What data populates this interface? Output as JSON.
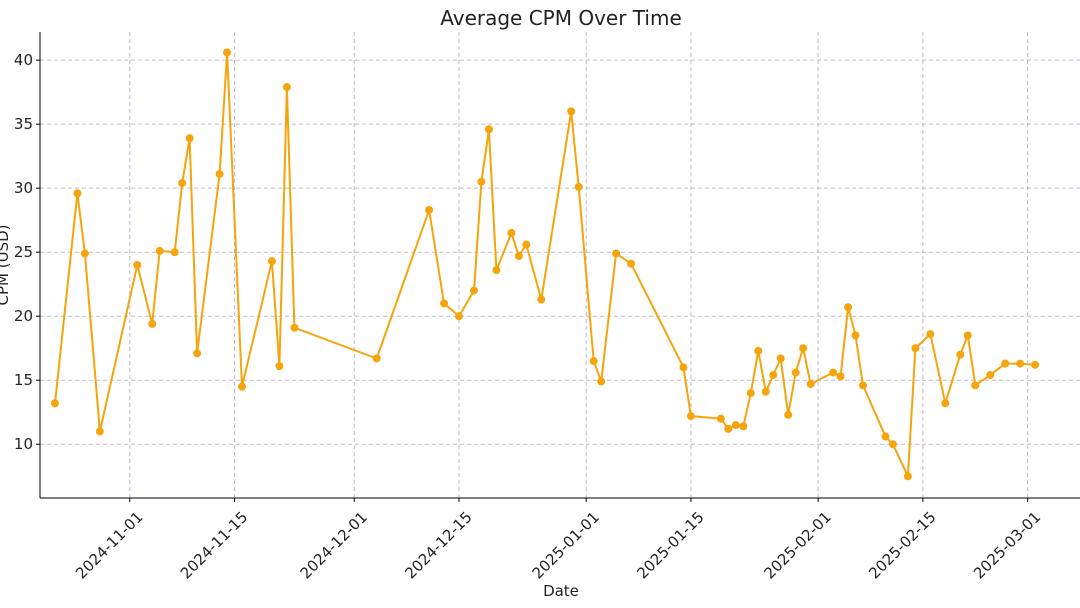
{
  "chart_data": {
    "type": "line",
    "title": "Average CPM Over Time",
    "xlabel": "Date",
    "ylabel": "CPM (USD)",
    "x_ticks": [
      "2024-11-01",
      "2024-11-15",
      "2024-12-01",
      "2024-12-15",
      "2025-01-01",
      "2025-01-15",
      "2025-02-01",
      "2025-02-15",
      "2025-03-01"
    ],
    "y_ticks": [
      10,
      15,
      20,
      25,
      30,
      35,
      40
    ],
    "xlim": [
      "2024-10-20",
      "2025-03-08"
    ],
    "ylim": [
      5.8,
      42.2
    ],
    "grid": true,
    "colors": {
      "line": "#f5a40c",
      "grid": "#c9b3d0",
      "axis": "#000000"
    },
    "series": [
      {
        "points": [
          [
            "2024-10-22",
            13.2
          ],
          [
            "2024-10-25",
            29.6
          ],
          [
            "2024-10-26",
            24.9
          ],
          [
            "2024-10-28",
            11.0
          ],
          [
            "2024-11-02",
            24.0
          ],
          [
            "2024-11-04",
            19.4
          ],
          [
            "2024-11-05",
            25.1
          ],
          [
            "2024-11-07",
            25.0
          ],
          [
            "2024-11-08",
            30.4
          ],
          [
            "2024-11-09",
            33.9
          ],
          [
            "2024-11-10",
            17.1
          ],
          [
            "2024-11-13",
            31.1
          ],
          [
            "2024-11-14",
            40.6
          ],
          [
            "2024-11-16",
            14.5
          ],
          [
            "2024-11-20",
            24.3
          ],
          [
            "2024-11-21",
            16.1
          ],
          [
            "2024-11-22",
            37.9
          ],
          [
            "2024-11-23",
            19.1
          ],
          [
            "2024-12-04",
            16.7
          ],
          [
            "2024-12-11",
            28.3
          ],
          [
            "2024-12-13",
            21.0
          ],
          [
            "2024-12-15",
            20.0
          ],
          [
            "2024-12-17",
            22.0
          ],
          [
            "2024-12-18",
            30.5
          ],
          [
            "2024-12-19",
            34.6
          ],
          [
            "2024-12-20",
            23.6
          ],
          [
            "2024-12-22",
            26.5
          ],
          [
            "2024-12-23",
            24.7
          ],
          [
            "2024-12-24",
            25.6
          ],
          [
            "2024-12-26",
            21.3
          ],
          [
            "2024-12-30",
            36.0
          ],
          [
            "2024-12-31",
            30.1
          ],
          [
            "2025-01-02",
            16.5
          ],
          [
            "2025-01-03",
            14.9
          ],
          [
            "2025-01-05",
            24.9
          ],
          [
            "2025-01-07",
            24.1
          ],
          [
            "2025-01-14",
            16.0
          ],
          [
            "2025-01-15",
            12.2
          ],
          [
            "2025-01-19",
            12.0
          ],
          [
            "2025-01-20",
            11.2
          ],
          [
            "2025-01-21",
            11.5
          ],
          [
            "2025-01-22",
            11.4
          ],
          [
            "2025-01-23",
            14.0
          ],
          [
            "2025-01-24",
            17.3
          ],
          [
            "2025-01-25",
            14.1
          ],
          [
            "2025-01-26",
            15.4
          ],
          [
            "2025-01-27",
            16.7
          ],
          [
            "2025-01-28",
            12.3
          ],
          [
            "2025-01-29",
            15.6
          ],
          [
            "2025-01-30",
            17.5
          ],
          [
            "2025-01-31",
            14.7
          ],
          [
            "2025-02-03",
            15.6
          ],
          [
            "2025-02-04",
            15.3
          ],
          [
            "2025-02-05",
            20.7
          ],
          [
            "2025-02-06",
            18.5
          ],
          [
            "2025-02-07",
            14.6
          ],
          [
            "2025-02-10",
            10.6
          ],
          [
            "2025-02-11",
            10.0
          ],
          [
            "2025-02-13",
            7.5
          ],
          [
            "2025-02-14",
            17.5
          ],
          [
            "2025-02-16",
            18.6
          ],
          [
            "2025-02-18",
            13.2
          ],
          [
            "2025-02-20",
            17.0
          ],
          [
            "2025-02-21",
            18.5
          ],
          [
            "2025-02-22",
            14.6
          ],
          [
            "2025-02-24",
            15.4
          ],
          [
            "2025-02-26",
            16.3
          ],
          [
            "2025-02-28",
            16.3
          ],
          [
            "2025-03-02",
            16.2
          ]
        ]
      }
    ]
  }
}
